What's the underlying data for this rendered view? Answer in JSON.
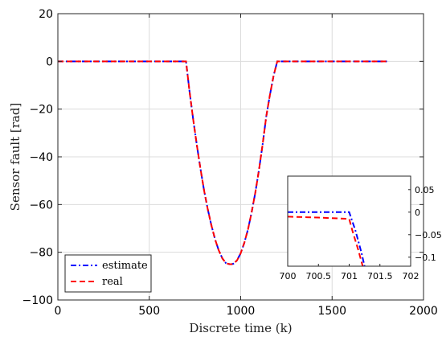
{
  "chart_data": [
    {
      "type": "line",
      "title": "",
      "xlabel": "Discrete time (k)",
      "ylabel": "Sensor fault [rad]",
      "xlim": [
        0,
        2000
      ],
      "ylim": [
        -100,
        20
      ],
      "xticks": [
        0,
        500,
        1000,
        1500,
        2000
      ],
      "yticks": [
        20,
        0,
        -20,
        -40,
        -60,
        -80,
        -100
      ],
      "xtick_labels": [
        "0",
        "500",
        "1000",
        "1500",
        "2000"
      ],
      "ytick_labels": [
        "20",
        "0",
        "-20",
        "-40",
        "-60",
        "-80",
        "-100"
      ],
      "grid": true,
      "legend_position": "bottom-left",
      "series": [
        {
          "name": "estimate",
          "color": "#0000ff",
          "line_style": "dash-dot",
          "x": [
            0,
            200,
            400,
            600,
            700,
            701,
            720,
            740,
            760,
            780,
            800,
            820,
            840,
            860,
            880,
            900,
            920,
            940,
            950,
            960,
            980,
            1000,
            1020,
            1040,
            1060,
            1080,
            1100,
            1120,
            1140,
            1160,
            1180,
            1200,
            1300,
            1400,
            1500,
            1600,
            1700,
            1800
          ],
          "y": [
            0,
            0,
            0,
            0,
            0,
            0,
            -12.5,
            -24.2,
            -35.0,
            -45.0,
            -54.2,
            -62.0,
            -68.8,
            -74.6,
            -79.2,
            -82.6,
            -84.6,
            -85.0,
            -85.0,
            -84.8,
            -83.4,
            -80.4,
            -76.0,
            -70.4,
            -63.2,
            -55.0,
            -45.5,
            -34.8,
            -23.0,
            -14.0,
            -6.0,
            0,
            0,
            0,
            0,
            0,
            0,
            0
          ]
        },
        {
          "name": "real",
          "color": "#ff0000",
          "line_style": "dashed",
          "x": [
            0,
            200,
            400,
            600,
            700,
            701,
            720,
            740,
            760,
            780,
            800,
            820,
            840,
            860,
            880,
            900,
            920,
            940,
            950,
            960,
            980,
            1000,
            1020,
            1040,
            1060,
            1080,
            1100,
            1120,
            1140,
            1160,
            1180,
            1200,
            1300,
            1400,
            1500,
            1600,
            1700,
            1800
          ],
          "y": [
            0,
            0,
            0,
            0,
            0,
            0,
            -12.5,
            -24.2,
            -35.0,
            -45.0,
            -54.2,
            -62.0,
            -68.8,
            -74.6,
            -79.2,
            -82.6,
            -84.6,
            -85.0,
            -85.0,
            -84.8,
            -83.4,
            -80.4,
            -76.0,
            -70.4,
            -63.2,
            -55.0,
            -45.5,
            -34.8,
            -23.0,
            -14.0,
            -6.0,
            0,
            0,
            0,
            0,
            0,
            0,
            0
          ]
        }
      ]
    },
    {
      "type": "line",
      "title": "",
      "xlabel": "",
      "ylabel": "",
      "xlim": [
        700,
        702
      ],
      "ylim": [
        -0.12,
        0.08
      ],
      "xticks": [
        700,
        700.5,
        701,
        701.5,
        702
      ],
      "yticks": [
        0.05,
        0,
        -0.05,
        -0.1
      ],
      "xtick_labels": [
        "700",
        "700.5",
        "701",
        "701.5",
        "702"
      ],
      "ytick_labels": [
        "0.05",
        "0",
        "-0.05",
        "-0.1"
      ],
      "grid": false,
      "y_axis_side": "right",
      "series": [
        {
          "name": "estimate",
          "color": "#0000ff",
          "line_style": "dash-dot",
          "x": [
            700,
            700.5,
            701,
            701.1,
            701.2,
            701.25
          ],
          "y": [
            0,
            0,
            0,
            -0.04,
            -0.09,
            -0.12
          ]
        },
        {
          "name": "real",
          "color": "#ff0000",
          "line_style": "dashed",
          "x": [
            700,
            700.5,
            701,
            701.05,
            701.15,
            701.22
          ],
          "y": [
            -0.01,
            -0.012,
            -0.015,
            -0.04,
            -0.085,
            -0.12
          ]
        }
      ]
    }
  ]
}
